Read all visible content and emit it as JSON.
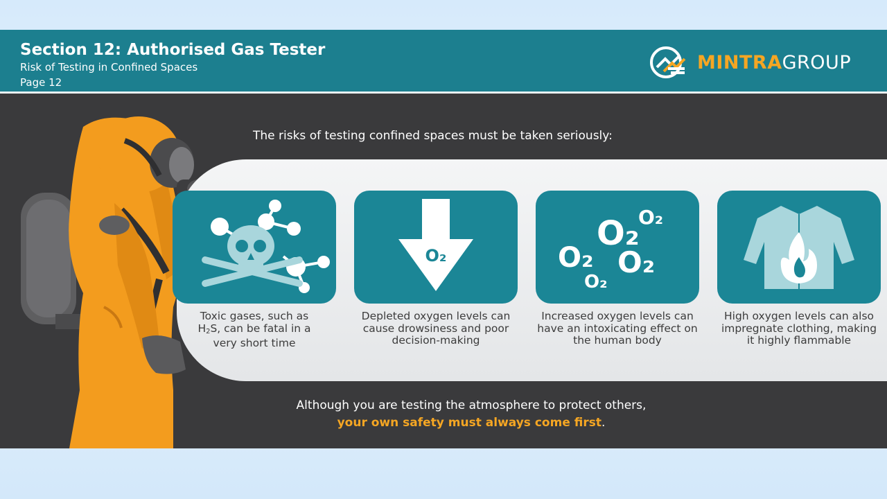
{
  "header": {
    "title": "Section 12: Authorised Gas Tester",
    "subtitle": "Risk of Testing in Confined Spaces",
    "page": "Page 12"
  },
  "logo": {
    "part1": "MINTRA",
    "part2": "GROUP",
    "icon": "mintra-logo-icon"
  },
  "lead_text": "The risks of testing confined spaces must be taken seriously:",
  "cards": [
    {
      "icon": "skull-crossbones-molecule-icon",
      "caption_pre": "Toxic gases, such as",
      "caption_h": "H",
      "caption_sub": "2",
      "caption_s": "S, can be fatal in a",
      "caption_end": "very short time"
    },
    {
      "icon": "down-arrow-o2-icon",
      "caption": "Depleted oxygen levels can cause drowsiness and poor decision-making",
      "label": "O₂"
    },
    {
      "icon": "o2-molecules-icon",
      "caption": "Increased oxygen levels can have an intoxicating effect on the human body",
      "labels": [
        "O₂",
        "O₂",
        "O₂",
        "O₂",
        "O₂"
      ]
    },
    {
      "icon": "burning-jacket-icon",
      "caption": "High oxygen levels can also impregnate clothing, making it highly flammable"
    }
  ],
  "footer": {
    "line1": "Although you are testing the atmosphere to protect others,",
    "line2": "your own safety must always come first",
    "period": "."
  },
  "colors": {
    "header_bg": "#1c7f8f",
    "card_bg": "#1b8696",
    "accent": "#f5a623",
    "slide_bg": "#3a3a3c"
  }
}
